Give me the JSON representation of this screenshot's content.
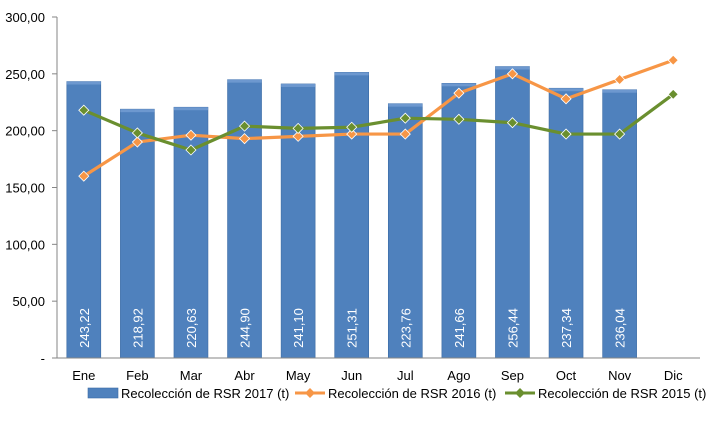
{
  "chart_data": {
    "type": "bar",
    "categories": [
      "Ene",
      "Feb",
      "Mar",
      "Abr",
      "May",
      "Jun",
      "Jul",
      "Ago",
      "Sep",
      "Oct",
      "Nov",
      "Dic"
    ],
    "ylim": [
      0,
      300
    ],
    "y_ticks": [
      {
        "value": 0,
        "label": "-"
      },
      {
        "value": 50,
        "label": "50,00"
      },
      {
        "value": 100,
        "label": "100,00"
      },
      {
        "value": 150,
        "label": "150,00"
      },
      {
        "value": 200,
        "label": "200,00"
      },
      {
        "value": 250,
        "label": "250,00"
      },
      {
        "value": 300,
        "label": "300,00"
      }
    ],
    "grid": false,
    "legend_position": "bottom",
    "series": [
      {
        "name": "Recolección de RSR 2017 (t)",
        "type": "bar",
        "color": "#4f81bd",
        "values": [
          243.22,
          218.92,
          220.63,
          244.9,
          241.1,
          251.31,
          223.76,
          241.66,
          256.44,
          237.34,
          236.04,
          null
        ],
        "data_labels": [
          "243,22",
          "218,92",
          "220,63",
          "244,90",
          "241,10",
          "251,31",
          "223,76",
          "241,66",
          "256,44",
          "237,34",
          "236,04",
          ""
        ]
      },
      {
        "name": "Recolección de RSR 2016 (t)",
        "type": "line",
        "color": "#f79646",
        "values": [
          160,
          190,
          196,
          193,
          195,
          197,
          197,
          233,
          250,
          228,
          245,
          262
        ]
      },
      {
        "name": "Recolección de RSR 2015 (t)",
        "type": "line",
        "color": "#6a8f2f",
        "values": [
          218,
          198,
          183,
          204,
          202,
          203,
          211,
          210,
          207,
          197,
          197,
          232
        ]
      }
    ]
  }
}
